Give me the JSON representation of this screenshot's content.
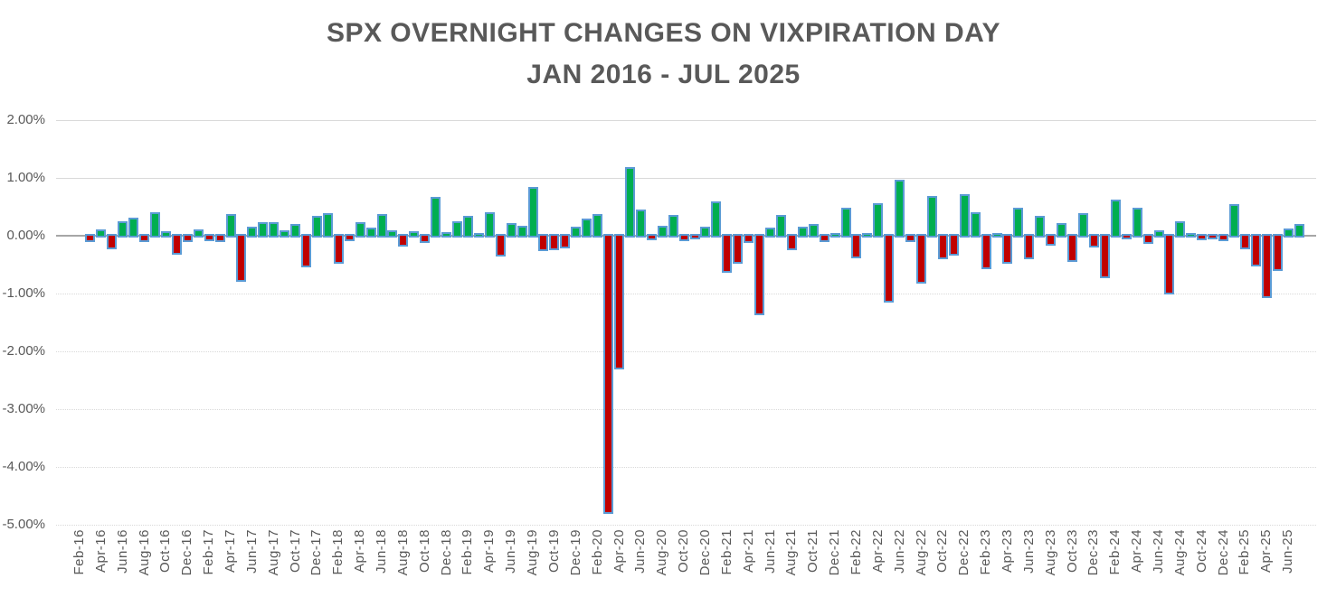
{
  "chart": {
    "title_line1": "SPX OVERNIGHT CHANGES ON VIXPIRATION DAY",
    "title_line2": "JAN 2016 - JUL 2025"
  },
  "chart_data": {
    "type": "bar",
    "title": "SPX OVERNIGHT CHANGES ON VIXPIRATION DAY JAN 2016 - JUL 2025",
    "xlabel": "",
    "ylabel": "",
    "ylim": [
      -5.0,
      2.0
    ],
    "grid": true,
    "legend": "none",
    "x_label_interval": 2,
    "y_ticks": [
      {
        "label": "2.00%",
        "value": 2
      },
      {
        "label": "1.00%",
        "value": 1
      },
      {
        "label": "0.00%",
        "value": 0
      },
      {
        "label": "-1.00%",
        "value": -1
      },
      {
        "label": "-2.00%",
        "value": -2
      },
      {
        "label": "-3.00%",
        "value": -3
      },
      {
        "label": "-4.00%",
        "value": -4
      },
      {
        "label": "-5.00%",
        "value": -5
      }
    ],
    "categories": [
      "Feb-16",
      "Mar-16",
      "Apr-16",
      "May-16",
      "Jun-16",
      "Jul-16",
      "Aug-16",
      "Sep-16",
      "Oct-16",
      "Nov-16",
      "Dec-16",
      "Jan-17",
      "Feb-17",
      "Mar-17",
      "Apr-17",
      "May-17",
      "Jun-17",
      "Jul-17",
      "Aug-17",
      "Sep-17",
      "Oct-17",
      "Nov-17",
      "Dec-17",
      "Jan-18",
      "Feb-18",
      "Mar-18",
      "Apr-18",
      "May-18",
      "Jun-18",
      "Jul-18",
      "Aug-18",
      "Sep-18",
      "Oct-18",
      "Nov-18",
      "Dec-18",
      "Jan-19",
      "Feb-19",
      "Mar-19",
      "Apr-19",
      "May-19",
      "Jun-19",
      "Jul-19",
      "Aug-19",
      "Sep-19",
      "Oct-19",
      "Nov-19",
      "Dec-19",
      "Jan-20",
      "Feb-20",
      "Mar-20",
      "Apr-20",
      "May-20",
      "Jun-20",
      "Jul-20",
      "Aug-20",
      "Sep-20",
      "Oct-20",
      "Nov-20",
      "Dec-20",
      "Jan-21",
      "Feb-21",
      "Mar-21",
      "Apr-21",
      "May-21",
      "Jun-21",
      "Jul-21",
      "Aug-21",
      "Sep-21",
      "Oct-21",
      "Nov-21",
      "Dec-21",
      "Jan-22",
      "Feb-22",
      "Mar-22",
      "Apr-22",
      "May-22",
      "Jun-22",
      "Jul-22",
      "Aug-22",
      "Sep-22",
      "Oct-22",
      "Nov-22",
      "Dec-22",
      "Jan-23",
      "Feb-23",
      "Mar-23",
      "Apr-23",
      "May-23",
      "Jun-23",
      "Jul-23",
      "Aug-23",
      "Sep-23",
      "Oct-23",
      "Nov-23",
      "Dec-23",
      "Jan-24",
      "Feb-24",
      "Mar-24",
      "Apr-24",
      "May-24",
      "Jun-24",
      "Jul-24",
      "Aug-24",
      "Sep-24",
      "Oct-24",
      "Nov-24",
      "Dec-24",
      "Jan-25",
      "Feb-25",
      "Mar-25",
      "Apr-25",
      "May-25",
      "Jun-25",
      "Jul-25"
    ],
    "values": [
      0.0,
      -0.08,
      0.08,
      -0.2,
      0.22,
      0.28,
      -0.08,
      0.37,
      0.05,
      -0.3,
      -0.08,
      0.08,
      -0.06,
      -0.08,
      0.35,
      -0.76,
      0.12,
      0.2,
      0.2,
      0.07,
      0.17,
      -0.52,
      0.32,
      0.36,
      -0.46,
      -0.06,
      0.2,
      0.11,
      0.34,
      0.07,
      -0.15,
      0.05,
      -0.1,
      0.64,
      0.03,
      0.22,
      0.31,
      0.02,
      0.38,
      -0.33,
      0.18,
      0.14,
      0.82,
      -0.24,
      -0.22,
      -0.19,
      0.13,
      0.26,
      0.34,
      -4.78,
      -2.28,
      1.15,
      0.42,
      -0.05,
      0.14,
      0.33,
      -0.07,
      -0.03,
      0.12,
      0.56,
      -0.61,
      -0.45,
      -0.09,
      -1.35,
      0.11,
      0.33,
      -0.22,
      0.12,
      0.17,
      -0.08,
      0.02,
      0.46,
      -0.36,
      0.01,
      0.53,
      -1.13,
      0.94,
      -0.08,
      -0.8,
      0.65,
      -0.38,
      -0.32,
      0.68,
      0.38,
      -0.55,
      0.01,
      -0.45,
      0.45,
      -0.38,
      0.32,
      -0.14,
      0.18,
      -0.42,
      0.36,
      -0.17,
      -0.7,
      0.6,
      -0.03,
      0.45,
      -0.11,
      0.07,
      -0.98,
      0.22,
      0.02,
      -0.04,
      -0.03,
      -0.07,
      0.51,
      -0.2,
      -0.5,
      -1.05,
      -0.58,
      0.1,
      0.17
    ],
    "value_unit": "%",
    "colors": {
      "positive": "#00AE50",
      "negative": "#C00000",
      "bar_border": "#5B9BD5",
      "gridline": "#D9D9D9",
      "zero_line": "#A6A6A6",
      "text": "#595959"
    }
  }
}
